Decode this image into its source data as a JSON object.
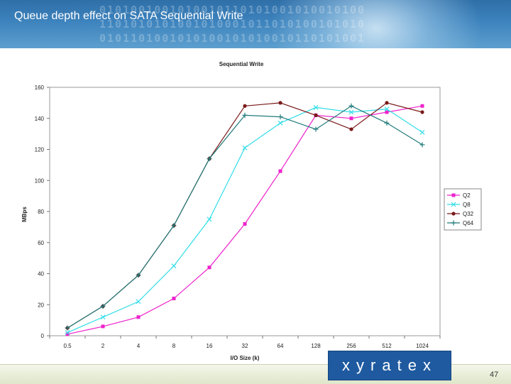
{
  "slide": {
    "title": "Queue depth effect on SATA Sequential Write",
    "logo_text": "xyratex",
    "page_number": "47",
    "colors": {
      "header": "#3d83bd",
      "logo": "#1f5aa0"
    }
  },
  "chart_data": {
    "type": "line",
    "title": "Sequential Write",
    "xlabel": "I/O Size (k)",
    "ylabel": "MBps",
    "categories": [
      "0.5",
      "2",
      "4",
      "8",
      "16",
      "32",
      "64",
      "128",
      "256",
      "512",
      "1024"
    ],
    "ylim": [
      0,
      160
    ],
    "yticks": [
      0,
      20,
      40,
      60,
      80,
      100,
      120,
      140,
      160
    ],
    "grid": false,
    "legend_position": "right",
    "series": [
      {
        "name": "Q2",
        "color": "#ee22cc",
        "marker": "square",
        "values": [
          1,
          6,
          12,
          24,
          44,
          72,
          106,
          142,
          140,
          144,
          148
        ]
      },
      {
        "name": "Q8",
        "color": "#33dde8",
        "marker": "x",
        "values": [
          2,
          12,
          22,
          45,
          75,
          121,
          137,
          147,
          144,
          146,
          131
        ]
      },
      {
        "name": "Q32",
        "color": "#7a1a1a",
        "marker": "circle",
        "values": [
          5,
          19,
          39,
          71,
          114,
          148,
          150,
          142,
          133,
          150,
          144
        ]
      },
      {
        "name": "Q64",
        "color": "#1f7a7a",
        "marker": "plus",
        "values": [
          5,
          19,
          39,
          71,
          114,
          142,
          141,
          133,
          148,
          137,
          123
        ]
      }
    ]
  }
}
